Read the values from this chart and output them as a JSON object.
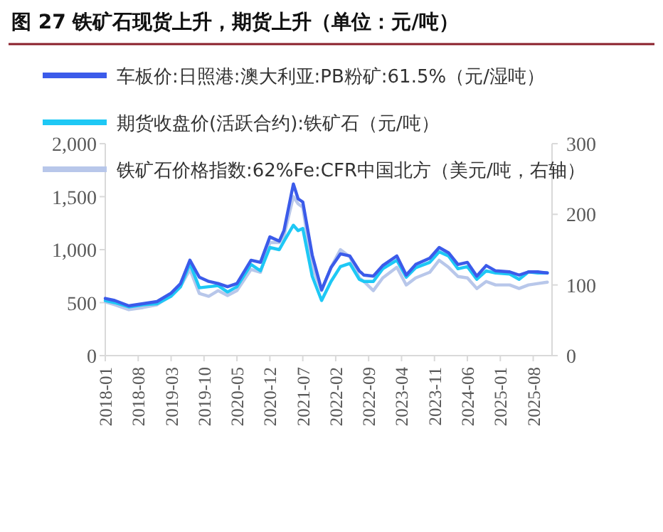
{
  "chart_data": {
    "type": "line",
    "title": "图 27 铁矿石现货上升，期货上升（单位：元/吨）",
    "xlim": [
      "2018-01",
      "2025-12"
    ],
    "xticks": [
      "2018-01",
      "2018-08",
      "2019-03",
      "2019-10",
      "2020-05",
      "2020-12",
      "2021-07",
      "2022-02",
      "2022-09",
      "2023-04",
      "2023-11",
      "2024-06",
      "2025-01",
      "2025-08"
    ],
    "ylim": [
      0,
      2000
    ],
    "yticks": [
      0,
      500,
      {
        "value": 1000,
        "label": "1,000"
      },
      {
        "value": 1500,
        "label": "1,500"
      },
      {
        "value": 2000,
        "label": "2,000"
      }
    ],
    "y2lim": [
      0,
      300
    ],
    "y2ticks": [
      0,
      100,
      200,
      300
    ],
    "legend": "top left",
    "grid": false,
    "series": [
      {
        "name": "车板价:日照港:澳大利亚:PB粉矿:61.5%（元/湿吨）",
        "color": "#3b5bea",
        "x": [
          "2018-01",
          "2018-03",
          "2018-06",
          "2018-09",
          "2018-12",
          "2019-03",
          "2019-05",
          "2019-07",
          "2019-09",
          "2019-11",
          "2020-01",
          "2020-03",
          "2020-05",
          "2020-08",
          "2020-10",
          "2020-12",
          "2021-02",
          "2021-03",
          "2021-05",
          "2021-06",
          "2021-07",
          "2021-09",
          "2021-11",
          "2022-01",
          "2022-03",
          "2022-05",
          "2022-07",
          "2022-08",
          "2022-10",
          "2022-12",
          "2023-03",
          "2023-05",
          "2023-07",
          "2023-10",
          "2023-12",
          "2024-02",
          "2024-04",
          "2024-06",
          "2024-08",
          "2024-10",
          "2024-12",
          "2025-03",
          "2025-05",
          "2025-07",
          "2025-09",
          "2025-11"
        ],
        "values": [
          540,
          520,
          470,
          490,
          510,
          590,
          680,
          900,
          740,
          700,
          680,
          650,
          680,
          900,
          880,
          1120,
          1080,
          1180,
          1620,
          1480,
          1450,
          950,
          620,
          830,
          960,
          940,
          800,
          760,
          750,
          850,
          940,
          760,
          860,
          920,
          1020,
          970,
          860,
          880,
          750,
          850,
          800,
          790,
          760,
          790,
          790,
          780
        ]
      },
      {
        "name": "期货收盘价(活跃合约):铁矿石（元/吨）",
        "color": "#1ec8f5",
        "x": [
          "2018-01",
          "2018-03",
          "2018-06",
          "2018-09",
          "2018-12",
          "2019-03",
          "2019-05",
          "2019-07",
          "2019-09",
          "2019-11",
          "2020-01",
          "2020-03",
          "2020-05",
          "2020-08",
          "2020-10",
          "2020-12",
          "2021-02",
          "2021-03",
          "2021-05",
          "2021-06",
          "2021-07",
          "2021-09",
          "2021-11",
          "2022-01",
          "2022-03",
          "2022-05",
          "2022-07",
          "2022-08",
          "2022-10",
          "2022-12",
          "2023-03",
          "2023-05",
          "2023-07",
          "2023-10",
          "2023-12",
          "2024-02",
          "2024-04",
          "2024-06",
          "2024-08",
          "2024-10",
          "2024-12",
          "2025-03",
          "2025-05",
          "2025-07",
          "2025-09",
          "2025-11"
        ],
        "values": [
          520,
          500,
          460,
          480,
          490,
          560,
          650,
          870,
          640,
          650,
          660,
          600,
          650,
          860,
          800,
          1020,
          1000,
          1080,
          1230,
          1180,
          1200,
          750,
          520,
          700,
          840,
          870,
          720,
          700,
          700,
          820,
          900,
          740,
          830,
          880,
          980,
          940,
          820,
          840,
          720,
          800,
          780,
          770,
          720,
          790,
          780,
          780
        ]
      },
      {
        "name": "铁矿石价格指数:62%Fe:CFR中国北方（美元/吨，右轴）",
        "color": "#b8c7ea",
        "axis": "y2",
        "x": [
          "2018-01",
          "2018-03",
          "2018-06",
          "2018-09",
          "2018-12",
          "2019-03",
          "2019-05",
          "2019-07",
          "2019-09",
          "2019-11",
          "2020-01",
          "2020-03",
          "2020-05",
          "2020-08",
          "2020-10",
          "2020-12",
          "2021-02",
          "2021-03",
          "2021-05",
          "2021-06",
          "2021-07",
          "2021-09",
          "2021-11",
          "2022-01",
          "2022-03",
          "2022-05",
          "2022-07",
          "2022-08",
          "2022-10",
          "2022-12",
          "2023-03",
          "2023-05",
          "2023-07",
          "2023-10",
          "2023-12",
          "2024-02",
          "2024-04",
          "2024-06",
          "2024-08",
          "2024-10",
          "2024-12",
          "2025-03",
          "2025-05",
          "2025-07",
          "2025-09",
          "2025-11"
        ],
        "values": [
          76,
          72,
          65,
          68,
          72,
          85,
          98,
          122,
          88,
          84,
          92,
          85,
          92,
          122,
          118,
          160,
          160,
          170,
          225,
          215,
          210,
          125,
          92,
          125,
          150,
          140,
          110,
          105,
          92,
          110,
          125,
          100,
          110,
          118,
          135,
          125,
          112,
          110,
          95,
          105,
          100,
          100,
          95,
          100,
          102,
          104
        ]
      }
    ]
  }
}
